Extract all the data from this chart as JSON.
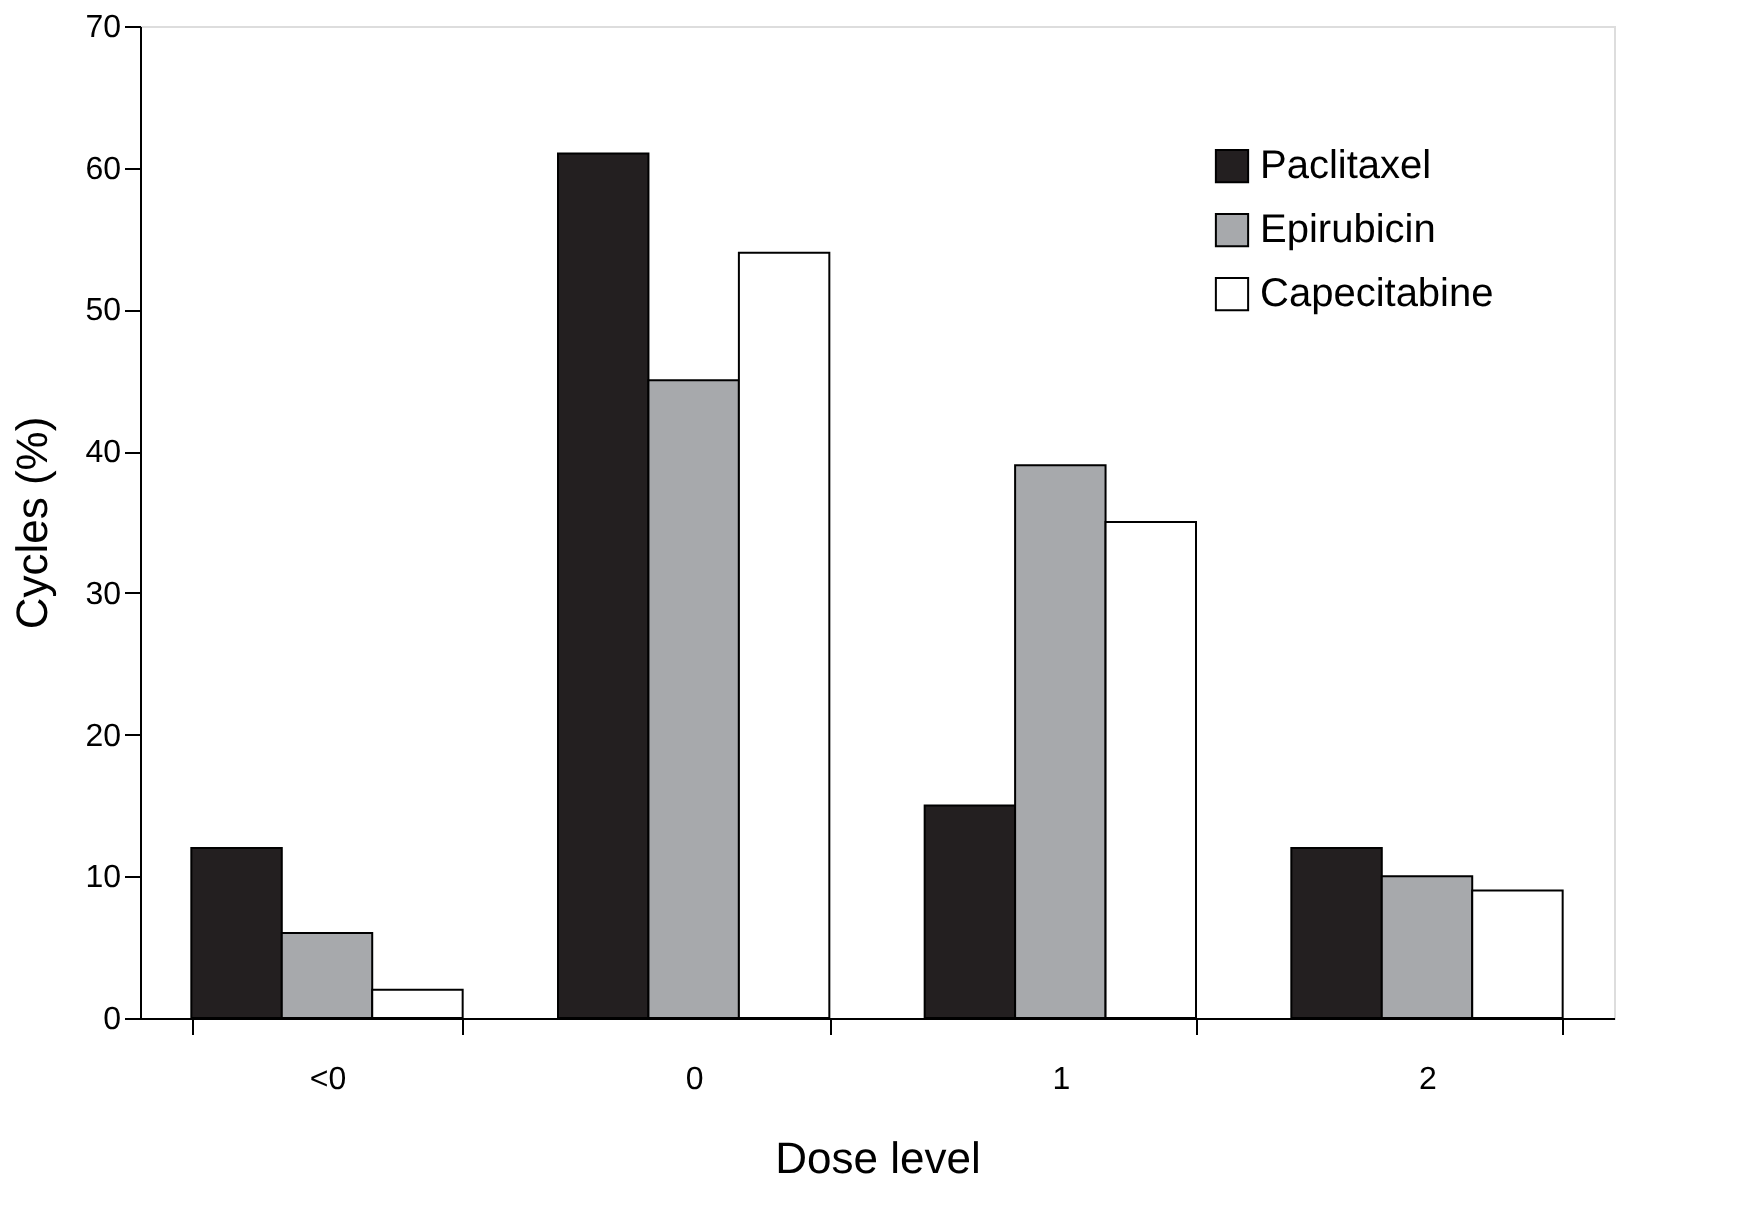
{
  "chart_data": {
    "type": "bar",
    "xlabel": "Dose level",
    "ylabel": "Cycles (%)",
    "categories": [
      "<0",
      "0",
      "1",
      "2"
    ],
    "series": [
      {
        "name": "Paclitaxel",
        "color": "#231f20",
        "values": [
          12,
          61,
          15,
          12
        ]
      },
      {
        "name": "Epirubicin",
        "color": "#a7a9ac",
        "values": [
          6,
          45,
          39,
          10
        ]
      },
      {
        "name": "Capecitabine",
        "color": "#ffffff",
        "values": [
          2,
          54,
          35,
          9
        ]
      }
    ],
    "ylim": [
      0,
      70
    ],
    "yticks": [
      0,
      10,
      20,
      30,
      40,
      50,
      60,
      70
    ],
    "legend": "top right"
  }
}
